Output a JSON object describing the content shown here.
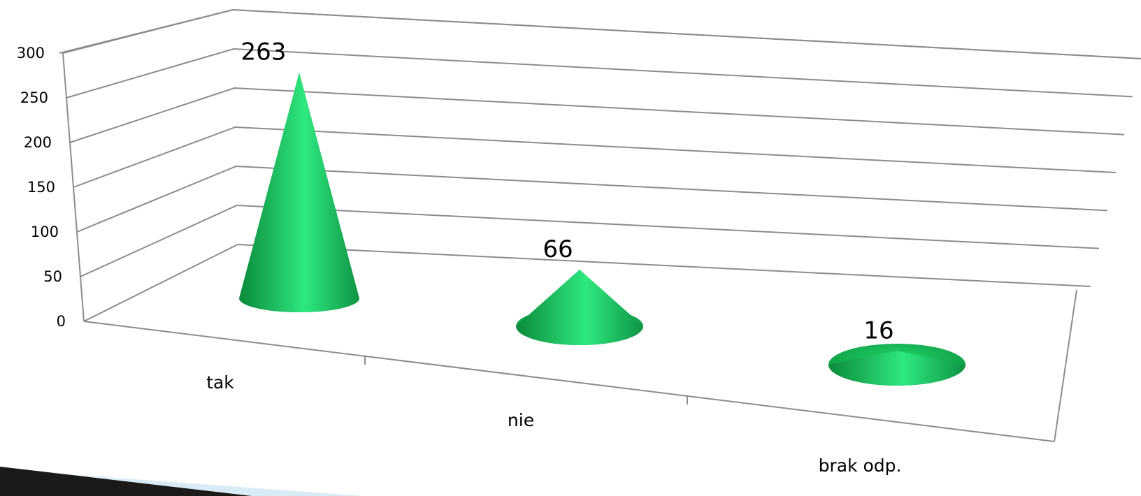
{
  "chart_data": {
    "type": "bar",
    "style": "3d-cone",
    "categories": [
      "tak",
      "nie",
      "brak odp."
    ],
    "values": [
      263,
      66,
      16
    ],
    "data_labels": [
      "263",
      "66",
      "16"
    ],
    "ylim": [
      0,
      300
    ],
    "ytick_step": 50,
    "yticks": [
      "0",
      "50",
      "100",
      "150",
      "200",
      "250",
      "300"
    ],
    "grid": true,
    "legend": false,
    "title": "",
    "xlabel": "",
    "ylabel": "",
    "colors": {
      "cone_light": "#2ee87f",
      "cone_mid": "#14c35a",
      "cone_dark": "#0b8a3a",
      "gridline": "#8c8c8c",
      "decor_dark": "#1a1a1a",
      "decor_blue": "#3da7d8",
      "decor_pale": "#cfe6f2"
    }
  }
}
